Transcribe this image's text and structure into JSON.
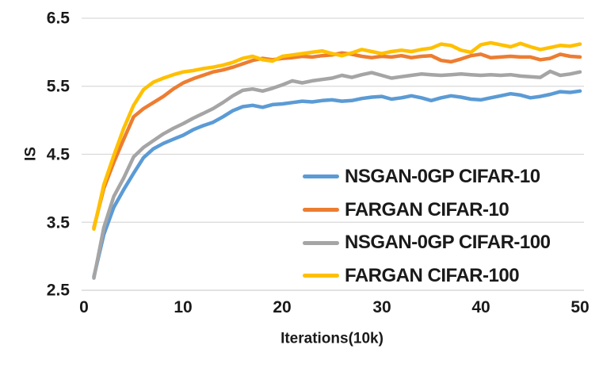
{
  "colors": {
    "background": "#FFFFFF",
    "gridline": "#D9D9D9",
    "text": "#1A1A1A"
  },
  "chart_data": {
    "type": "line",
    "title": "",
    "xlabel": "Iterations(10k)",
    "ylabel": "IS",
    "xlim": [
      0,
      50
    ],
    "ylim": [
      2.5,
      6.5
    ],
    "xticks": [
      0,
      10,
      20,
      30,
      40,
      50
    ],
    "yticks": [
      2.5,
      3.5,
      4.5,
      5.5,
      6.5
    ],
    "grid": "horizontal",
    "legend_position": "inside-lower-right",
    "x_start": 1,
    "x_step": 1,
    "series": [
      {
        "name": "NSGAN-0GP CIFAR-10",
        "color": "#5B9BD5",
        "values": [
          2.7,
          3.32,
          3.72,
          3.98,
          4.22,
          4.45,
          4.58,
          4.66,
          4.72,
          4.78,
          4.86,
          4.92,
          4.97,
          5.05,
          5.14,
          5.2,
          5.22,
          5.19,
          5.23,
          5.24,
          5.26,
          5.28,
          5.27,
          5.29,
          5.3,
          5.28,
          5.29,
          5.32,
          5.34,
          5.35,
          5.31,
          5.33,
          5.36,
          5.33,
          5.29,
          5.33,
          5.36,
          5.34,
          5.31,
          5.3,
          5.33,
          5.36,
          5.39,
          5.37,
          5.33,
          5.35,
          5.38,
          5.42,
          5.41,
          5.43
        ]
      },
      {
        "name": "FARGAN CIFAR-10",
        "color": "#ED7D31",
        "values": [
          3.42,
          4.0,
          4.38,
          4.72,
          5.05,
          5.17,
          5.26,
          5.35,
          5.46,
          5.55,
          5.61,
          5.66,
          5.71,
          5.74,
          5.78,
          5.83,
          5.88,
          5.91,
          5.89,
          5.91,
          5.92,
          5.94,
          5.93,
          5.95,
          5.96,
          5.99,
          5.97,
          5.94,
          5.92,
          5.94,
          5.93,
          5.95,
          5.92,
          5.94,
          5.95,
          5.88,
          5.86,
          5.9,
          5.95,
          5.97,
          5.92,
          5.93,
          5.94,
          5.93,
          5.93,
          5.89,
          5.91,
          5.97,
          5.94,
          5.93
        ]
      },
      {
        "name": "NSGAN-0GP CIFAR-100",
        "color": "#A5A5A5",
        "values": [
          2.68,
          3.42,
          3.88,
          4.15,
          4.46,
          4.6,
          4.7,
          4.8,
          4.88,
          4.95,
          5.03,
          5.1,
          5.17,
          5.26,
          5.36,
          5.44,
          5.46,
          5.43,
          5.47,
          5.52,
          5.58,
          5.55,
          5.58,
          5.6,
          5.62,
          5.66,
          5.63,
          5.67,
          5.7,
          5.66,
          5.62,
          5.64,
          5.66,
          5.68,
          5.67,
          5.66,
          5.67,
          5.68,
          5.67,
          5.66,
          5.67,
          5.66,
          5.67,
          5.65,
          5.64,
          5.63,
          5.72,
          5.66,
          5.68,
          5.71
        ]
      },
      {
        "name": "FARGAN CIFAR-100",
        "color": "#FFC000",
        "values": [
          3.4,
          4.05,
          4.48,
          4.88,
          5.22,
          5.45,
          5.56,
          5.62,
          5.67,
          5.71,
          5.73,
          5.76,
          5.78,
          5.81,
          5.85,
          5.91,
          5.94,
          5.89,
          5.87,
          5.94,
          5.96,
          5.98,
          6.0,
          6.02,
          5.98,
          5.95,
          5.99,
          6.04,
          6.01,
          5.98,
          6.01,
          6.03,
          6.01,
          6.04,
          6.06,
          6.12,
          6.1,
          6.03,
          6.0,
          6.11,
          6.14,
          6.11,
          6.08,
          6.13,
          6.08,
          6.04,
          6.07,
          6.1,
          6.09,
          6.12
        ]
      }
    ]
  }
}
